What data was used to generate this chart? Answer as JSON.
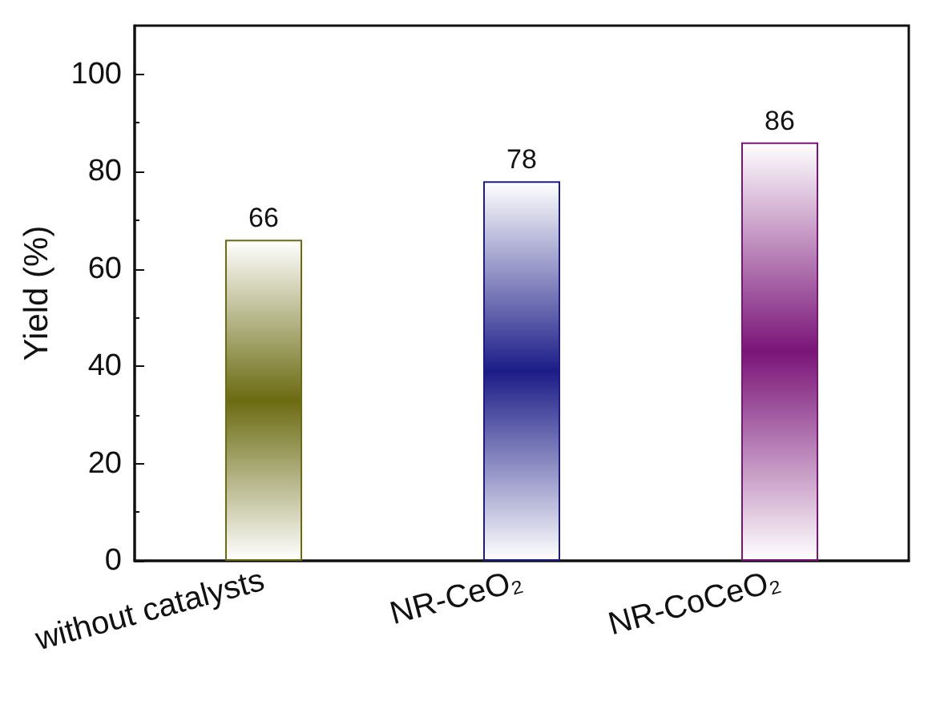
{
  "chart_data": {
    "type": "bar",
    "ylabel": "Yield (%)",
    "categories": [
      "without catalysts",
      "NR-CeO₂",
      "NR-CoCeO₂"
    ],
    "values": [
      66,
      78,
      86
    ],
    "colors": [
      "#6b6b12",
      "#1c1c88",
      "#7a1478"
    ],
    "ylim": [
      0,
      110
    ],
    "yticks": [
      0,
      20,
      40,
      60,
      80,
      100
    ],
    "data_labels": true,
    "grid": false
  }
}
